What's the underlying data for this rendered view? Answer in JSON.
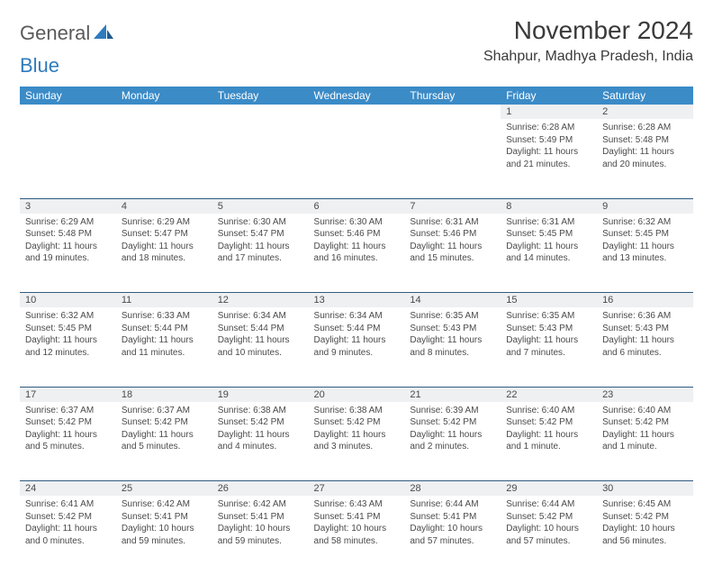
{
  "logo": {
    "general": "General",
    "blue": "Blue"
  },
  "title": "November 2024",
  "location": "Shahpur, Madhya Pradesh, India",
  "colors": {
    "header_bg": "#3b8bc7",
    "header_fg": "#ffffff",
    "daynum_bg": "#eef0f2",
    "border": "#2f5b80",
    "text": "#4a4a4a",
    "logo_gray": "#5a5a5a",
    "logo_blue": "#2f7bbf"
  },
  "typography": {
    "title_size": 28,
    "location_size": 16,
    "header_size": 12,
    "daynum_size": 11,
    "cell_size": 10
  },
  "weekdays": [
    "Sunday",
    "Monday",
    "Tuesday",
    "Wednesday",
    "Thursday",
    "Friday",
    "Saturday"
  ],
  "weeks": [
    {
      "nums": [
        "",
        "",
        "",
        "",
        "",
        "1",
        "2"
      ],
      "cells": [
        "",
        "",
        "",
        "",
        "",
        "Sunrise: 6:28 AM\nSunset: 5:49 PM\nDaylight: 11 hours and 21 minutes.",
        "Sunrise: 6:28 AM\nSunset: 5:48 PM\nDaylight: 11 hours and 20 minutes."
      ]
    },
    {
      "nums": [
        "3",
        "4",
        "5",
        "6",
        "7",
        "8",
        "9"
      ],
      "cells": [
        "Sunrise: 6:29 AM\nSunset: 5:48 PM\nDaylight: 11 hours and 19 minutes.",
        "Sunrise: 6:29 AM\nSunset: 5:47 PM\nDaylight: 11 hours and 18 minutes.",
        "Sunrise: 6:30 AM\nSunset: 5:47 PM\nDaylight: 11 hours and 17 minutes.",
        "Sunrise: 6:30 AM\nSunset: 5:46 PM\nDaylight: 11 hours and 16 minutes.",
        "Sunrise: 6:31 AM\nSunset: 5:46 PM\nDaylight: 11 hours and 15 minutes.",
        "Sunrise: 6:31 AM\nSunset: 5:45 PM\nDaylight: 11 hours and 14 minutes.",
        "Sunrise: 6:32 AM\nSunset: 5:45 PM\nDaylight: 11 hours and 13 minutes."
      ]
    },
    {
      "nums": [
        "10",
        "11",
        "12",
        "13",
        "14",
        "15",
        "16"
      ],
      "cells": [
        "Sunrise: 6:32 AM\nSunset: 5:45 PM\nDaylight: 11 hours and 12 minutes.",
        "Sunrise: 6:33 AM\nSunset: 5:44 PM\nDaylight: 11 hours and 11 minutes.",
        "Sunrise: 6:34 AM\nSunset: 5:44 PM\nDaylight: 11 hours and 10 minutes.",
        "Sunrise: 6:34 AM\nSunset: 5:44 PM\nDaylight: 11 hours and 9 minutes.",
        "Sunrise: 6:35 AM\nSunset: 5:43 PM\nDaylight: 11 hours and 8 minutes.",
        "Sunrise: 6:35 AM\nSunset: 5:43 PM\nDaylight: 11 hours and 7 minutes.",
        "Sunrise: 6:36 AM\nSunset: 5:43 PM\nDaylight: 11 hours and 6 minutes."
      ]
    },
    {
      "nums": [
        "17",
        "18",
        "19",
        "20",
        "21",
        "22",
        "23"
      ],
      "cells": [
        "Sunrise: 6:37 AM\nSunset: 5:42 PM\nDaylight: 11 hours and 5 minutes.",
        "Sunrise: 6:37 AM\nSunset: 5:42 PM\nDaylight: 11 hours and 5 minutes.",
        "Sunrise: 6:38 AM\nSunset: 5:42 PM\nDaylight: 11 hours and 4 minutes.",
        "Sunrise: 6:38 AM\nSunset: 5:42 PM\nDaylight: 11 hours and 3 minutes.",
        "Sunrise: 6:39 AM\nSunset: 5:42 PM\nDaylight: 11 hours and 2 minutes.",
        "Sunrise: 6:40 AM\nSunset: 5:42 PM\nDaylight: 11 hours and 1 minute.",
        "Sunrise: 6:40 AM\nSunset: 5:42 PM\nDaylight: 11 hours and 1 minute."
      ]
    },
    {
      "nums": [
        "24",
        "25",
        "26",
        "27",
        "28",
        "29",
        "30"
      ],
      "cells": [
        "Sunrise: 6:41 AM\nSunset: 5:42 PM\nDaylight: 11 hours and 0 minutes.",
        "Sunrise: 6:42 AM\nSunset: 5:41 PM\nDaylight: 10 hours and 59 minutes.",
        "Sunrise: 6:42 AM\nSunset: 5:41 PM\nDaylight: 10 hours and 59 minutes.",
        "Sunrise: 6:43 AM\nSunset: 5:41 PM\nDaylight: 10 hours and 58 minutes.",
        "Sunrise: 6:44 AM\nSunset: 5:41 PM\nDaylight: 10 hours and 57 minutes.",
        "Sunrise: 6:44 AM\nSunset: 5:42 PM\nDaylight: 10 hours and 57 minutes.",
        "Sunrise: 6:45 AM\nSunset: 5:42 PM\nDaylight: 10 hours and 56 minutes."
      ]
    }
  ]
}
